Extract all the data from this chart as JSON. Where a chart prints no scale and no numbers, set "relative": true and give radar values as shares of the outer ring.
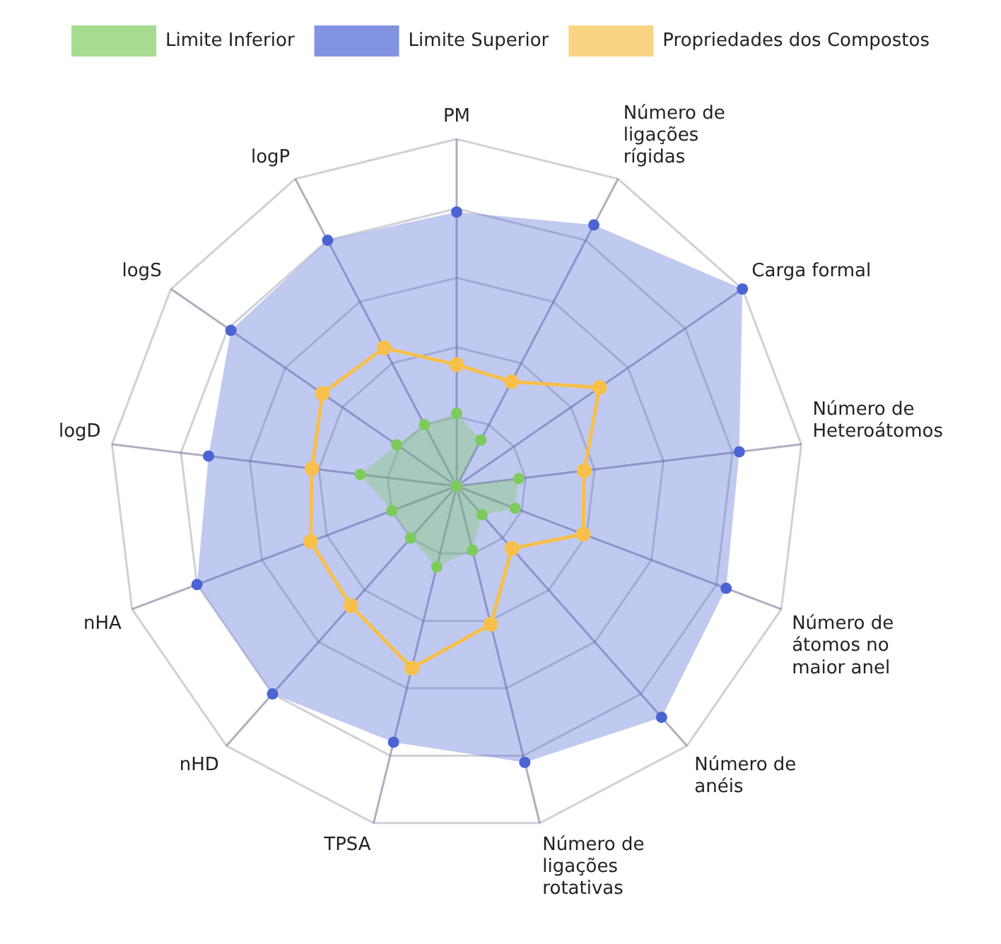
{
  "chart_data": {
    "type": "radar",
    "relative": true,
    "grid": true,
    "legend": "top",
    "marker": "circle",
    "categories": [
      "PM",
      "Número de ligações rígidas",
      "Carga formal",
      "Número de Heteroátomos",
      "Número de átomos no maior anel",
      "Número de anéis",
      "Número de ligações rotativas",
      "TPSA",
      "nHD",
      "nHA",
      "logD",
      "logS",
      "logP"
    ],
    "series": [
      {
        "name": "Limite Inferior",
        "color": "#7ccc5c",
        "values": [
          0.21,
          0.15,
          0,
          0.18,
          0.18,
          0.11,
          0.19,
          0.24,
          0.2,
          0.2,
          0.28,
          0.21,
          0.2
        ]
      },
      {
        "name": "Limite Superior",
        "color": "#4a64d4",
        "values": [
          0.79,
          0.85,
          1,
          0.82,
          0.83,
          0.89,
          0.82,
          0.76,
          0.8,
          0.8,
          0.72,
          0.79,
          0.8
        ]
      },
      {
        "name": "Propriedades dos Compostos",
        "color": "#f7c04a",
        "values": [
          0.35,
          0.34,
          0.5,
          0.37,
          0.39,
          0.24,
          0.41,
          0.54,
          0.46,
          0.45,
          0.42,
          0.47,
          0.45
        ]
      }
    ]
  }
}
